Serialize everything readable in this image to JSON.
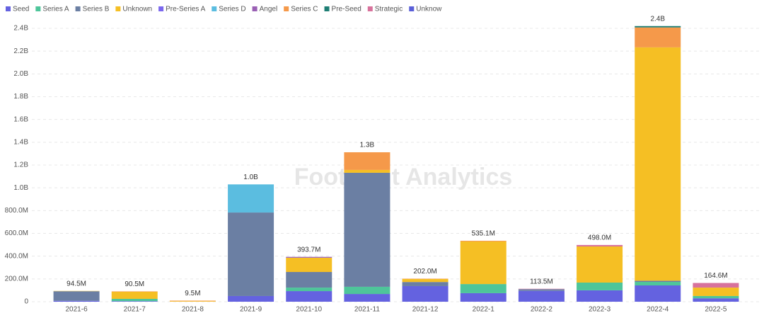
{
  "chart_data": {
    "type": "stacked_bar",
    "watermark": "Footprint Analytics",
    "categories": [
      "2021-6",
      "2021-7",
      "2021-8",
      "2021-9",
      "2021-10",
      "2021-11",
      "2021-12",
      "2022-1",
      "2022-2",
      "2022-3",
      "2022-4",
      "2022-5"
    ],
    "total_labels": [
      "94.5M",
      "90.5M",
      "9.5M",
      "1.0B",
      "393.7M",
      "1.3B",
      "202.0M",
      "535.1M",
      "113.5M",
      "498.0M",
      "2.4B",
      "164.6M"
    ],
    "series": [
      {
        "name": "Seed",
        "color": "#6462e0",
        "values": [
          8,
          5,
          null,
          50,
          93,
          68,
          137,
          75,
          95,
          100,
          143,
          30
        ]
      },
      {
        "name": "Series A",
        "color": "#4ec59a",
        "values": [
          null,
          20,
          null,
          null,
          31,
          63,
          null,
          80,
          null,
          68,
          31,
          20
        ]
      },
      {
        "name": "Series B",
        "color": "#6b7fa3",
        "values": [
          84,
          null,
          null,
          733,
          137,
          1001,
          36,
          null,
          15,
          null,
          10,
          null
        ]
      },
      {
        "name": "Unknown",
        "color": "#f5bf24",
        "values": [
          2.5,
          62,
          5,
          null,
          125,
          25,
          26,
          374,
          null,
          317,
          2049,
          74
        ]
      },
      {
        "name": "Pre-Series A",
        "color": "#7b68ee",
        "values": [
          null,
          null,
          null,
          null,
          null,
          null,
          null,
          null,
          null,
          null,
          null,
          null
        ]
      },
      {
        "name": "Series D",
        "color": "#5bbde0",
        "values": [
          null,
          null,
          null,
          247,
          null,
          null,
          null,
          null,
          null,
          null,
          null,
          null
        ]
      },
      {
        "name": "Angel",
        "color": "#9a60b4",
        "values": [
          null,
          null,
          null,
          null,
          7.7,
          null,
          null,
          null,
          null,
          null,
          null,
          null
        ]
      },
      {
        "name": "Series C",
        "color": "#f5994a",
        "values": [
          null,
          3.5,
          4.5,
          null,
          null,
          155,
          3,
          6.1,
          null,
          null,
          175,
          null
        ]
      },
      {
        "name": "Pre-Seed",
        "color": "#1e7e74",
        "values": [
          null,
          null,
          null,
          null,
          null,
          null,
          null,
          null,
          null,
          null,
          12,
          null
        ]
      },
      {
        "name": "Strategic",
        "color": "#d8729c",
        "values": [
          null,
          null,
          null,
          null,
          null,
          null,
          null,
          null,
          3.5,
          13,
          null,
          40.6
        ]
      },
      {
        "name": "Unknow",
        "color": "#5a5fd8",
        "values": [
          null,
          null,
          null,
          null,
          null,
          null,
          null,
          null,
          null,
          null,
          null,
          null
        ]
      }
    ],
    "ylim": [
      0,
      2400
    ],
    "yticks": [
      0,
      {
        "value": 200,
        "label": "200.0M"
      },
      {
        "value": 400,
        "label": "400.0M"
      },
      {
        "value": 600,
        "label": "600.0M"
      },
      {
        "value": 800,
        "label": "800.0M"
      },
      {
        "value": 1000,
        "label": "1.0B"
      },
      {
        "value": 1200,
        "label": "1.2B"
      },
      {
        "value": 1400,
        "label": "1.4B"
      },
      {
        "value": 1600,
        "label": "1.6B"
      },
      {
        "value": 1800,
        "label": "1.8B"
      },
      {
        "value": 2000,
        "label": "2.0B"
      },
      {
        "value": 2200,
        "label": "2.2B"
      },
      {
        "value": 2400,
        "label": "2.4B"
      }
    ],
    "grid": true
  }
}
